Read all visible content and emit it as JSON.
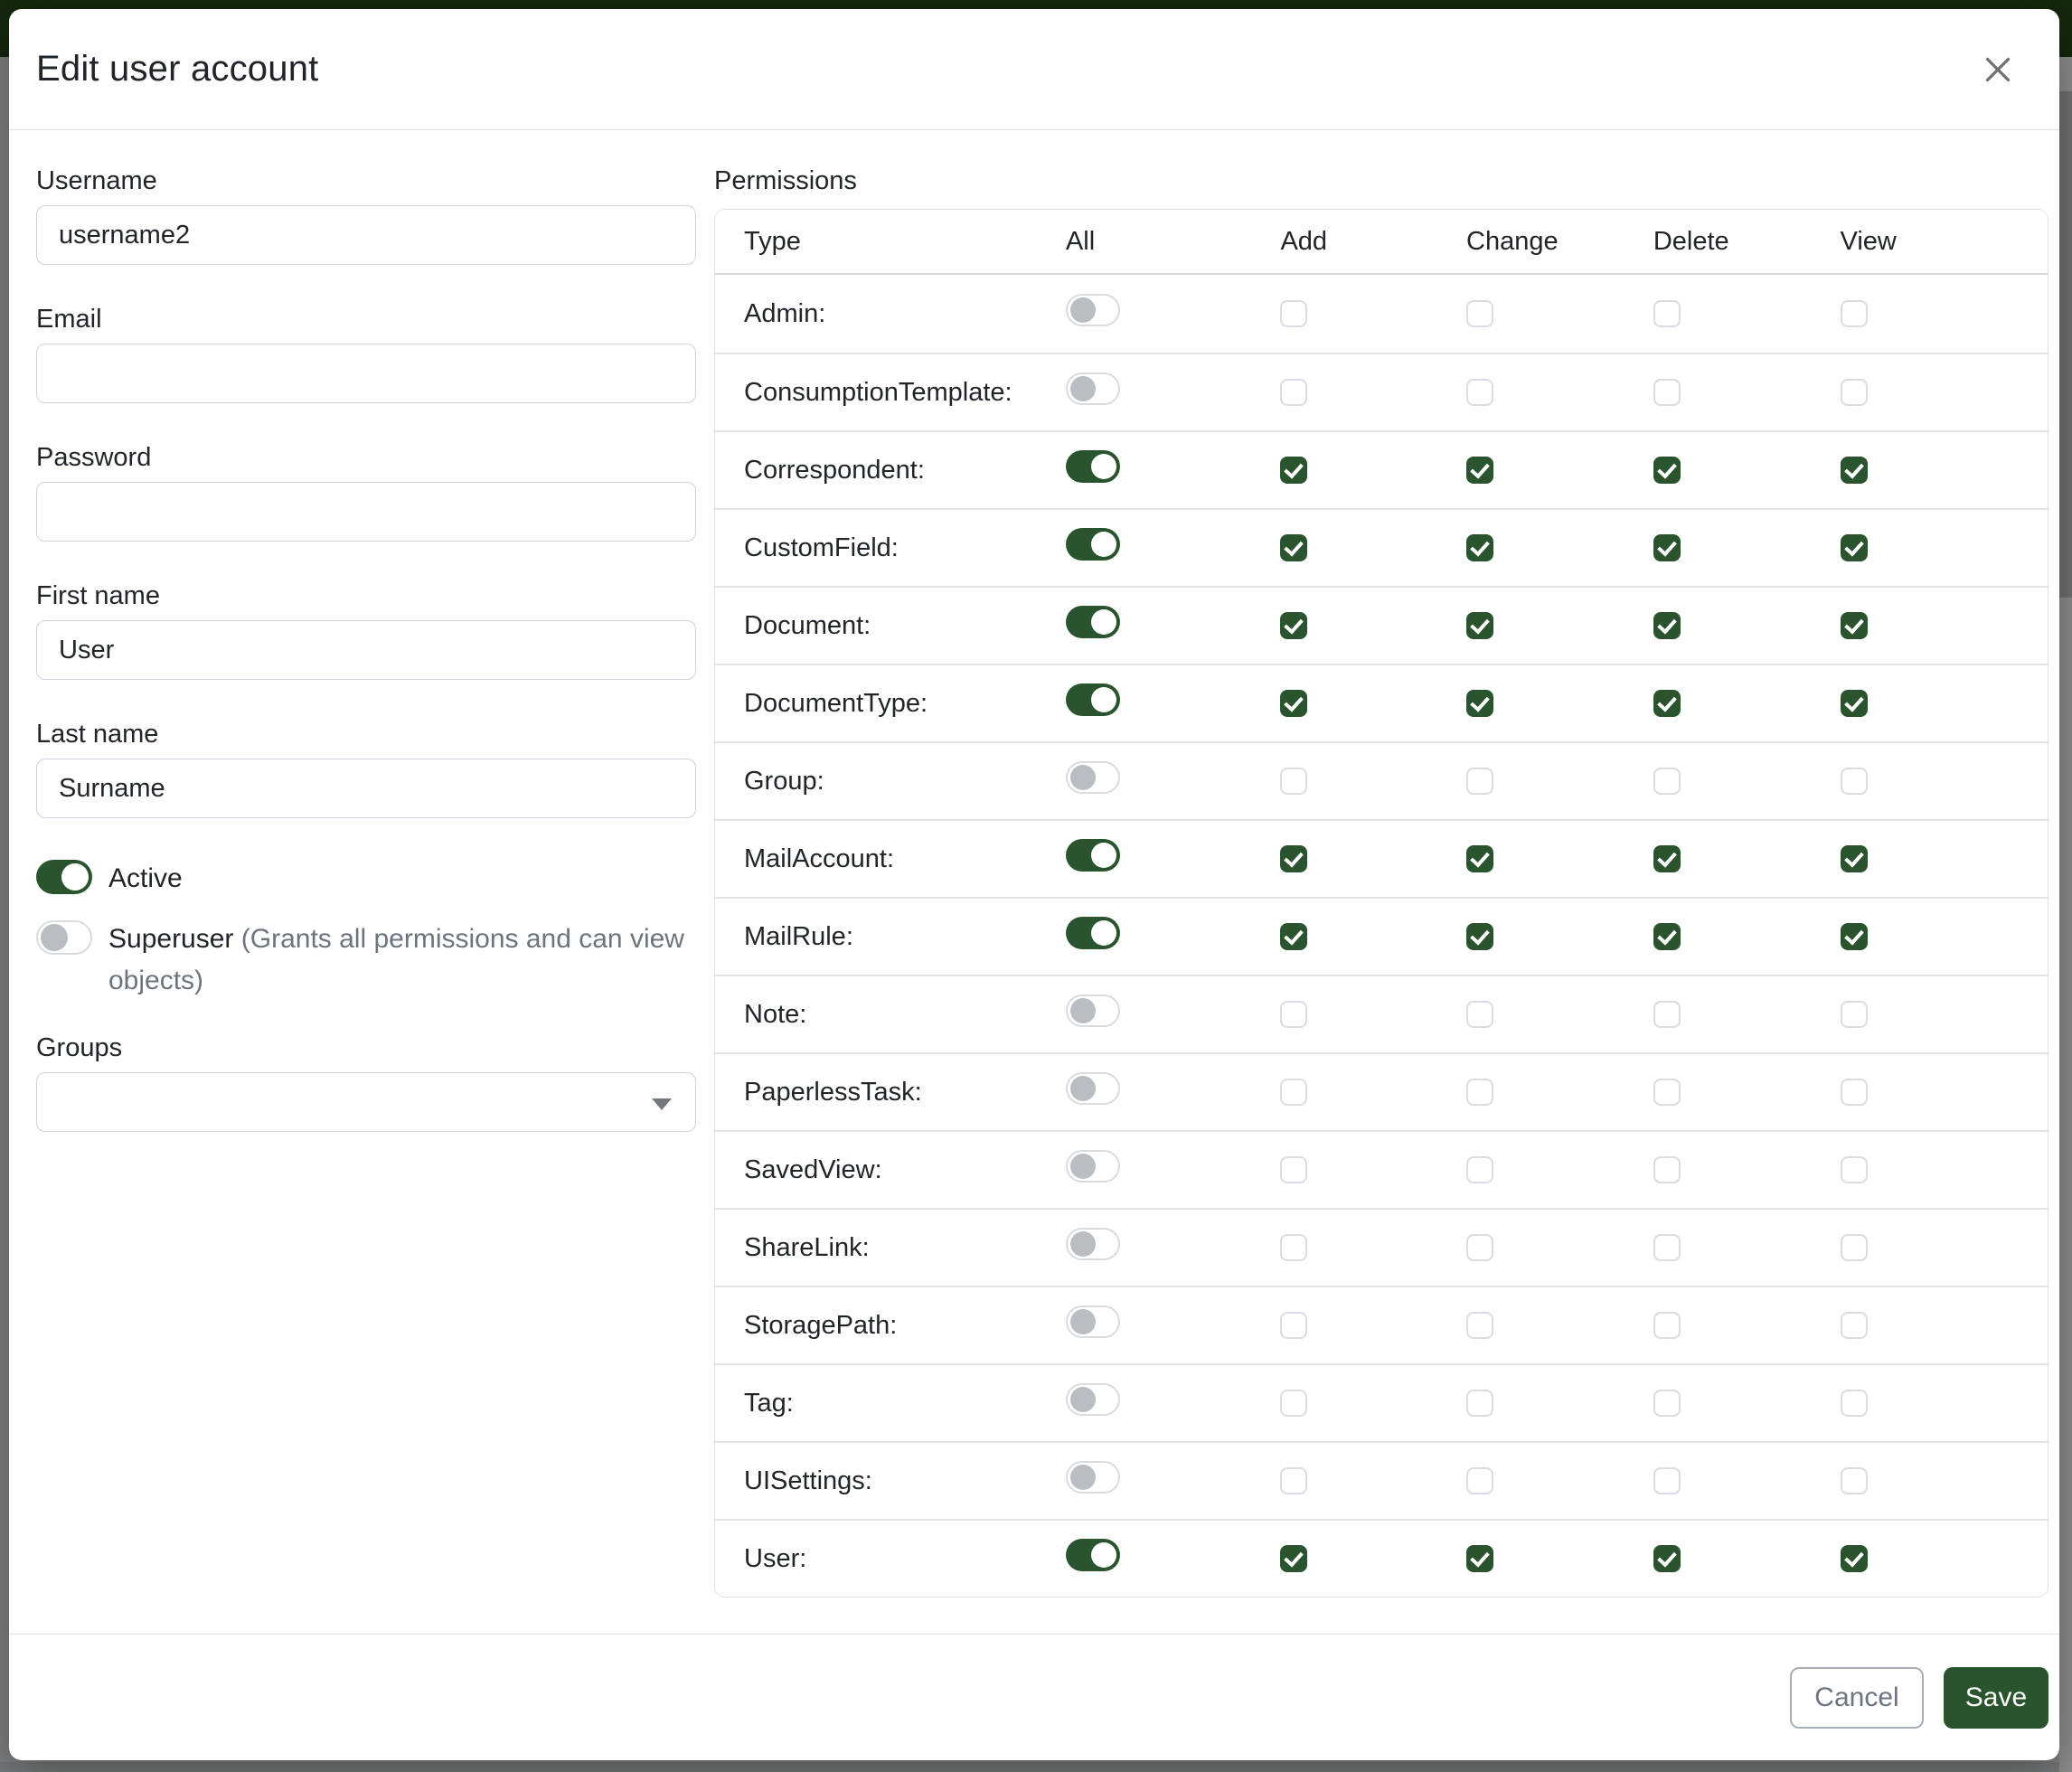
{
  "modal": {
    "title": "Edit user account"
  },
  "colors": {
    "primary_green": "#2a542e",
    "backdrop_header_green": "#15280e",
    "hint_gray": "#6c757d"
  },
  "form": {
    "username": {
      "label": "Username",
      "value": "username2"
    },
    "email": {
      "label": "Email",
      "value": ""
    },
    "password": {
      "label": "Password",
      "value": ""
    },
    "first_name": {
      "label": "First name",
      "value": "User"
    },
    "last_name": {
      "label": "Last name",
      "value": "Surname"
    },
    "active": {
      "label": "Active",
      "enabled": true
    },
    "superuser": {
      "label": "Superuser",
      "hint": "(Grants all permissions and can view objects)",
      "enabled": false
    },
    "groups": {
      "label": "Groups",
      "value": ""
    }
  },
  "permissions": {
    "label": "Permissions",
    "columns": [
      "Type",
      "All",
      "Add",
      "Change",
      "Delete",
      "View"
    ],
    "rows": [
      {
        "label": "Admin:",
        "all": false,
        "add": false,
        "change": false,
        "delete": false,
        "view": false
      },
      {
        "label": "ConsumptionTemplate:",
        "all": false,
        "add": false,
        "change": false,
        "delete": false,
        "view": false
      },
      {
        "label": "Correspondent:",
        "all": true,
        "add": true,
        "change": true,
        "delete": true,
        "view": true
      },
      {
        "label": "CustomField:",
        "all": true,
        "add": true,
        "change": true,
        "delete": true,
        "view": true
      },
      {
        "label": "Document:",
        "all": true,
        "add": true,
        "change": true,
        "delete": true,
        "view": true
      },
      {
        "label": "DocumentType:",
        "all": true,
        "add": true,
        "change": true,
        "delete": true,
        "view": true
      },
      {
        "label": "Group:",
        "all": false,
        "add": false,
        "change": false,
        "delete": false,
        "view": false
      },
      {
        "label": "MailAccount:",
        "all": true,
        "add": true,
        "change": true,
        "delete": true,
        "view": true
      },
      {
        "label": "MailRule:",
        "all": true,
        "add": true,
        "change": true,
        "delete": true,
        "view": true
      },
      {
        "label": "Note:",
        "all": false,
        "add": false,
        "change": false,
        "delete": false,
        "view": false
      },
      {
        "label": "PaperlessTask:",
        "all": false,
        "add": false,
        "change": false,
        "delete": false,
        "view": false
      },
      {
        "label": "SavedView:",
        "all": false,
        "add": false,
        "change": false,
        "delete": false,
        "view": false
      },
      {
        "label": "ShareLink:",
        "all": false,
        "add": false,
        "change": false,
        "delete": false,
        "view": false
      },
      {
        "label": "StoragePath:",
        "all": false,
        "add": false,
        "change": false,
        "delete": false,
        "view": false
      },
      {
        "label": "Tag:",
        "all": false,
        "add": false,
        "change": false,
        "delete": false,
        "view": false
      },
      {
        "label": "UISettings:",
        "all": false,
        "add": false,
        "change": false,
        "delete": false,
        "view": false
      },
      {
        "label": "User:",
        "all": true,
        "add": true,
        "change": true,
        "delete": true,
        "view": true
      }
    ]
  },
  "footer": {
    "cancel_label": "Cancel",
    "save_label": "Save"
  }
}
